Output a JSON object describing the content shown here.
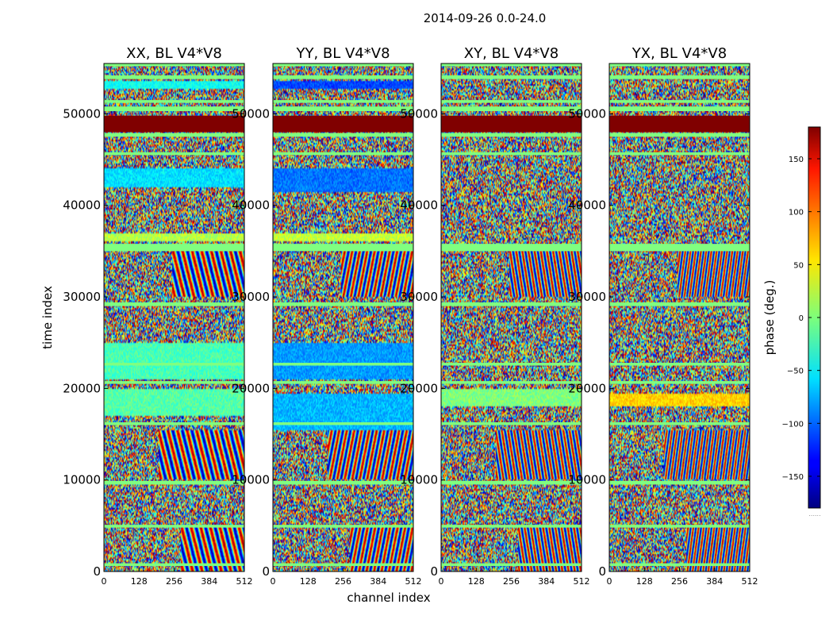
{
  "chart_data": {
    "type": "heatmap",
    "title": "2014-09-26 0.0-24.0",
    "xlabel": "channel index",
    "ylabel": "time index",
    "xlim": [
      0,
      512
    ],
    "ylim": [
      0,
      55500
    ],
    "x_ticks": [
      0,
      128,
      256,
      384,
      512
    ],
    "y_ticks": [
      0,
      10000,
      20000,
      30000,
      40000,
      50000
    ],
    "colorbar": {
      "label": "phase (deg.)",
      "range": [
        -180,
        180
      ],
      "ticks": [
        150,
        100,
        50,
        0,
        -50,
        -100,
        -150
      ],
      "tick_labels": [
        "150",
        "100",
        "50",
        "0",
        "−50",
        "−100",
        "−150"
      ],
      "colormap": "jet",
      "footnote": "......"
    },
    "panels": [
      {
        "title": "XX, BL V4*V8",
        "polarization": "XX"
      },
      {
        "title": "YY, BL V4*V8",
        "polarization": "YY"
      },
      {
        "title": "XY, BL V4*V8",
        "polarization": "XY"
      },
      {
        "title": "YX, BL V4*V8",
        "polarization": "YX"
      }
    ],
    "saturated_band": {
      "time_start": 48000,
      "time_end": 49800,
      "phase": 180
    },
    "flagged_bands": [
      {
        "time_start": 55200,
        "time_end": 55500,
        "phase": 0
      },
      {
        "time_start": 53800,
        "time_end": 54200,
        "phase": 0
      },
      {
        "time_start": 51200,
        "time_end": 51500,
        "phase": 0
      },
      {
        "time_start": 50300,
        "time_end": 50800,
        "phase": 0
      },
      {
        "time_start": 47500,
        "time_end": 47900,
        "phase": 0
      },
      {
        "time_start": 45500,
        "time_end": 45800,
        "phase": 0
      },
      {
        "time_start": 35000,
        "time_end": 35800,
        "phase": 0
      },
      {
        "time_start": 29000,
        "time_end": 29400,
        "phase": 0
      },
      {
        "time_start": 22500,
        "time_end": 22800,
        "phase": 0
      },
      {
        "time_start": 20500,
        "time_end": 20800,
        "phase": 0
      },
      {
        "time_start": 16000,
        "time_end": 16300,
        "phase": 0
      },
      {
        "time_start": 9500,
        "time_end": 9900,
        "phase": 0
      },
      {
        "time_start": 4800,
        "time_end": 5100,
        "phase": 0
      },
      {
        "time_start": 600,
        "time_end": 900,
        "phase": 0
      }
    ],
    "tinted_bands": [
      {
        "panel": "XX",
        "time_start": 52800,
        "time_end": 53600,
        "phase": -40
      },
      {
        "panel": "XX",
        "time_start": 42000,
        "time_end": 44000,
        "phase": -55
      },
      {
        "panel": "XX",
        "time_start": 36000,
        "time_end": 37000,
        "phase": 20
      },
      {
        "panel": "XX",
        "time_start": 21000,
        "time_end": 25000,
        "phase": -20
      },
      {
        "panel": "XX",
        "time_start": 17000,
        "time_end": 20000,
        "phase": -15
      },
      {
        "panel": "YY",
        "time_start": 52800,
        "time_end": 53600,
        "phase": -110
      },
      {
        "panel": "YY",
        "time_start": 41500,
        "time_end": 44000,
        "phase": -95
      },
      {
        "panel": "YY",
        "time_start": 36000,
        "time_end": 37000,
        "phase": 25
      },
      {
        "panel": "YY",
        "time_start": 21000,
        "time_end": 25000,
        "phase": -80
      },
      {
        "panel": "YY",
        "time_start": 15500,
        "time_end": 19500,
        "phase": -70
      },
      {
        "panel": "XY",
        "time_start": 18000,
        "time_end": 20000,
        "phase": 0
      },
      {
        "panel": "YX",
        "time_start": 18000,
        "time_end": 19500,
        "phase": 60
      }
    ],
    "fringe_regions": [
      {
        "time_start": 30000,
        "time_end": 35000,
        "channel_start": 250,
        "channel_end": 512
      },
      {
        "time_start": 10000,
        "time_end": 15500,
        "channel_start": 200,
        "channel_end": 512
      },
      {
        "time_start": 0,
        "time_end": 5000,
        "channel_start": 280,
        "channel_end": 512
      }
    ]
  }
}
